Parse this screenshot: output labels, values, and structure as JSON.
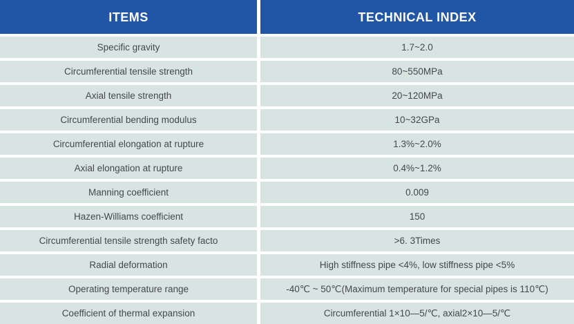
{
  "table": {
    "columns": [
      {
        "label": "ITEMS"
      },
      {
        "label": "TECHNICAL INDEX"
      }
    ],
    "rows": [
      {
        "item": "Specific gravity",
        "value": "1.7~2.0"
      },
      {
        "item": "Circumferential tensile strength",
        "value": "80~550MPa"
      },
      {
        "item": "Axial tensile strength",
        "value": "20~120MPa"
      },
      {
        "item": "Circumferential bending modulus",
        "value": "10~32GPa"
      },
      {
        "item": "Circumferential elongation at rupture",
        "value": "1.3%~2.0%"
      },
      {
        "item": "Axial elongation at rupture",
        "value": "0.4%~1.2%"
      },
      {
        "item": "Manning coefficient",
        "value": "0.009"
      },
      {
        "item": "Hazen-Williams coefficient",
        "value": "150"
      },
      {
        "item": "Circumferential tensile strength safety facto",
        "value": ">6. 3Times"
      },
      {
        "item": "Radial deformation",
        "value": "High stiffness pipe <4%, low stiffness pipe <5%"
      },
      {
        "item": "Operating temperature range",
        "value": "-40℃ ~ 50℃(Maximum temperature for special pipes is 110℃)"
      },
      {
        "item": "Coefficient of thermal expansion",
        "value": "Circumferential 1×10—5/℃, axial2×10—5/℃"
      }
    ]
  },
  "colors": {
    "header_bg": "#2155a5",
    "header_text": "#ffffff",
    "row_bg": "#d8e4e2",
    "row_text": "#43484b",
    "gutter": "#ffffff"
  }
}
